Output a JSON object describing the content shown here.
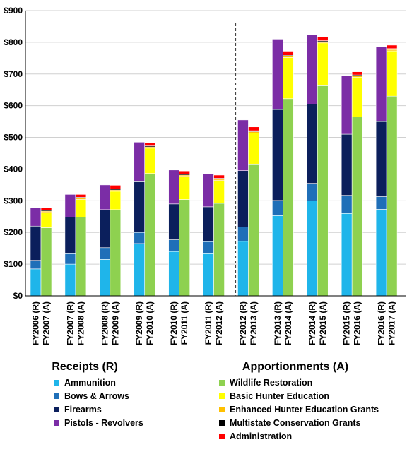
{
  "chart_data": {
    "type": "bar",
    "stacked": true,
    "y_ticks": [
      "$0",
      "$100",
      "$200",
      "$300",
      "$400",
      "$500",
      "$600",
      "$700",
      "$800",
      "$900"
    ],
    "ylim": [
      0,
      900
    ],
    "gridlines": true,
    "divider_after_category": "FY2013 (A)",
    "group_labels": [
      "Receipts (R)",
      "Apportionments (A)"
    ],
    "categories": [
      "FY2006 (R)",
      "FY2007 (A)",
      "FY2007 (R)",
      "FY2008 (A)",
      "FY2008 (R)",
      "FY2009 (A)",
      "FY2009 (R)",
      "FY2010 (A)",
      "FY2010 (R)",
      "FY2011 (A)",
      "FY2011 (R)",
      "FY2012 (A)",
      "FY2012 (R)",
      "FY2013 (A)",
      "FY2013 (R)",
      "FY2014 (A)",
      "FY2014 (R)",
      "FY2015 (A)",
      "FY2015 (R)",
      "FY2016 (A)",
      "FY2016 (R)",
      "FY2017 (A)"
    ],
    "series": [
      {
        "name": "Ammunition",
        "color": "#1FB5EA",
        "values": [
          85,
          0,
          100,
          0,
          115,
          0,
          165,
          0,
          140,
          0,
          133,
          0,
          172,
          0,
          253,
          0,
          300,
          0,
          260,
          0,
          273,
          0
        ]
      },
      {
        "name": "Bows & Arrows",
        "color": "#1F6FB8",
        "values": [
          27,
          0,
          33,
          0,
          37,
          0,
          35,
          0,
          37,
          0,
          38,
          0,
          45,
          0,
          48,
          0,
          55,
          0,
          57,
          0,
          40,
          0
        ]
      },
      {
        "name": "Firearms",
        "color": "#0B1F5C",
        "values": [
          108,
          0,
          115,
          0,
          120,
          0,
          160,
          0,
          113,
          0,
          110,
          0,
          178,
          0,
          287,
          0,
          250,
          0,
          193,
          0,
          237,
          0
        ]
      },
      {
        "name": "Pistols - Revolvers",
        "color": "#7B2DA6",
        "values": [
          58,
          0,
          72,
          0,
          78,
          0,
          125,
          0,
          107,
          0,
          103,
          0,
          160,
          0,
          222,
          0,
          218,
          0,
          185,
          0,
          237,
          0
        ]
      },
      {
        "name": "Wildlife Restoration",
        "color": "#8ED150",
        "values": [
          0,
          215,
          0,
          248,
          0,
          272,
          0,
          386,
          0,
          304,
          0,
          292,
          0,
          416,
          0,
          622,
          0,
          663,
          0,
          565,
          0,
          630
        ]
      },
      {
        "name": "Basic Hunter Education",
        "color": "#FFFF00",
        "values": [
          0,
          48,
          0,
          56,
          0,
          58,
          0,
          80,
          0,
          73,
          0,
          72,
          0,
          98,
          0,
          130,
          0,
          135,
          0,
          125,
          0,
          143
        ]
      },
      {
        "name": "Enhanced Hunter Education Grants",
        "color": "#FFC000",
        "values": [
          0,
          4,
          0,
          4,
          0,
          4,
          0,
          4,
          0,
          4,
          0,
          4,
          0,
          4,
          0,
          4,
          0,
          4,
          0,
          4,
          0,
          4
        ]
      },
      {
        "name": "Multistate Conservation Grants",
        "color": "#000000",
        "values": [
          0,
          3,
          0,
          3,
          0,
          3,
          0,
          3,
          0,
          3,
          0,
          3,
          0,
          3,
          0,
          3,
          0,
          3,
          0,
          3,
          0,
          3
        ]
      },
      {
        "name": "Administration",
        "color": "#FF0000",
        "values": [
          0,
          9,
          0,
          9,
          0,
          12,
          0,
          10,
          0,
          10,
          0,
          10,
          0,
          12,
          0,
          13,
          0,
          13,
          0,
          10,
          0,
          11
        ]
      }
    ],
    "legend": {
      "left": [
        "Ammunition",
        "Bows & Arrows",
        "Firearms",
        "Pistols - Revolvers"
      ],
      "right": [
        "Wildlife Restoration",
        "Basic Hunter Education",
        "Enhanced Hunter Education Grants",
        "Multistate Conservation Grants",
        "Administration"
      ]
    }
  }
}
